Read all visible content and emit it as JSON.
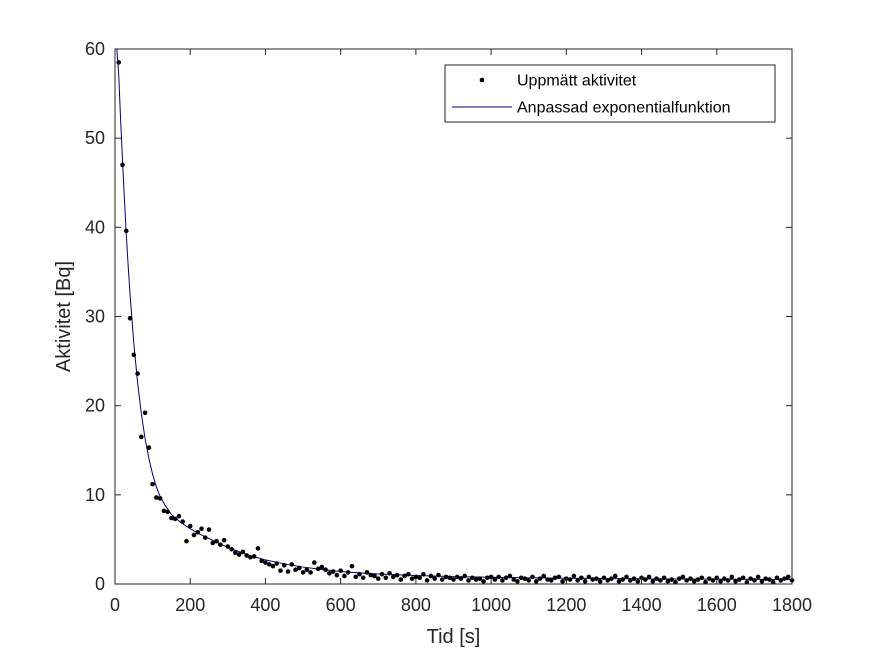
{
  "chart_data": {
    "type": "scatter",
    "title": "",
    "xlabel": "Tid [s]",
    "ylabel": "Aktivitet [Bq]",
    "xlim": [
      0,
      1800
    ],
    "ylim": [
      0,
      60
    ],
    "xticks": [
      0,
      200,
      400,
      600,
      800,
      1000,
      1200,
      1400,
      1600,
      1800
    ],
    "yticks": [
      0,
      10,
      20,
      30,
      40,
      50,
      60
    ],
    "grid": false,
    "legend_position": "top-right",
    "series": [
      {
        "name": "Uppmätt aktivitet",
        "kind": "markers",
        "color": "#000000",
        "points": [
          [
            10,
            58.5
          ],
          [
            20,
            47.0
          ],
          [
            30,
            39.6
          ],
          [
            40,
            29.8
          ],
          [
            50,
            25.7
          ],
          [
            60,
            23.6
          ],
          [
            70,
            16.5
          ],
          [
            80,
            19.2
          ],
          [
            90,
            15.3
          ],
          [
            100,
            11.2
          ],
          [
            110,
            9.7
          ],
          [
            120,
            9.6
          ],
          [
            130,
            8.2
          ],
          [
            140,
            8.1
          ],
          [
            150,
            7.4
          ],
          [
            160,
            7.3
          ],
          [
            170,
            7.6
          ],
          [
            180,
            7.0
          ],
          [
            190,
            4.8
          ],
          [
            200,
            6.5
          ],
          [
            210,
            5.5
          ],
          [
            220,
            5.8
          ],
          [
            230,
            6.2
          ],
          [
            240,
            5.2
          ],
          [
            250,
            6.1
          ],
          [
            260,
            4.6
          ],
          [
            270,
            4.8
          ],
          [
            280,
            4.4
          ],
          [
            290,
            4.9
          ],
          [
            300,
            4.2
          ],
          [
            310,
            3.9
          ],
          [
            320,
            3.5
          ],
          [
            330,
            3.3
          ],
          [
            340,
            3.6
          ],
          [
            350,
            3.2
          ],
          [
            360,
            3.0
          ],
          [
            370,
            3.1
          ],
          [
            380,
            4.0
          ],
          [
            390,
            2.6
          ],
          [
            400,
            2.4
          ],
          [
            410,
            2.2
          ],
          [
            420,
            2.0
          ],
          [
            430,
            2.3
          ],
          [
            440,
            1.5
          ],
          [
            450,
            2.1
          ],
          [
            460,
            1.4
          ],
          [
            470,
            2.2
          ],
          [
            480,
            1.6
          ],
          [
            490,
            1.8
          ],
          [
            500,
            1.3
          ],
          [
            510,
            1.6
          ],
          [
            520,
            1.3
          ],
          [
            530,
            2.4
          ],
          [
            540,
            1.7
          ],
          [
            550,
            1.9
          ],
          [
            560,
            1.6
          ],
          [
            570,
            1.2
          ],
          [
            580,
            1.4
          ],
          [
            590,
            1.0
          ],
          [
            600,
            1.5
          ],
          [
            610,
            0.9
          ],
          [
            620,
            1.3
          ],
          [
            630,
            2.0
          ],
          [
            640,
            0.8
          ],
          [
            650,
            1.1
          ],
          [
            660,
            0.7
          ],
          [
            670,
            1.3
          ],
          [
            680,
            1.0
          ],
          [
            690,
            0.9
          ],
          [
            700,
            0.6
          ],
          [
            710,
            1.1
          ],
          [
            720,
            0.7
          ],
          [
            730,
            1.2
          ],
          [
            740,
            0.8
          ],
          [
            750,
            1.0
          ],
          [
            760,
            0.5
          ],
          [
            770,
            0.9
          ],
          [
            780,
            1.1
          ],
          [
            790,
            0.6
          ],
          [
            800,
            0.8
          ],
          [
            810,
            0.7
          ],
          [
            820,
            1.1
          ],
          [
            830,
            0.4
          ],
          [
            840,
            0.9
          ],
          [
            850,
            0.6
          ],
          [
            860,
            1.0
          ],
          [
            870,
            0.5
          ],
          [
            880,
            0.8
          ],
          [
            890,
            0.7
          ],
          [
            900,
            0.5
          ],
          [
            910,
            0.8
          ],
          [
            920,
            0.6
          ],
          [
            930,
            0.9
          ],
          [
            940,
            0.4
          ],
          [
            950,
            0.7
          ],
          [
            960,
            0.5
          ],
          [
            970,
            0.6
          ],
          [
            980,
            0.3
          ],
          [
            990,
            0.7
          ],
          [
            1000,
            0.8
          ],
          [
            1010,
            0.5
          ],
          [
            1020,
            0.8
          ],
          [
            1030,
            0.4
          ],
          [
            1040,
            0.7
          ],
          [
            1050,
            0.9
          ],
          [
            1060,
            0.5
          ],
          [
            1070,
            0.3
          ],
          [
            1080,
            0.7
          ],
          [
            1090,
            0.6
          ],
          [
            1100,
            0.4
          ],
          [
            1110,
            0.8
          ],
          [
            1120,
            0.3
          ],
          [
            1130,
            0.6
          ],
          [
            1140,
            0.9
          ],
          [
            1150,
            0.5
          ],
          [
            1160,
            0.4
          ],
          [
            1170,
            0.7
          ],
          [
            1180,
            0.8
          ],
          [
            1190,
            0.3
          ],
          [
            1200,
            0.6
          ],
          [
            1210,
            0.5
          ],
          [
            1220,
            0.9
          ],
          [
            1230,
            0.4
          ],
          [
            1240,
            0.7
          ],
          [
            1250,
            0.3
          ],
          [
            1260,
            0.8
          ],
          [
            1270,
            0.5
          ],
          [
            1280,
            0.6
          ],
          [
            1290,
            0.3
          ],
          [
            1300,
            0.7
          ],
          [
            1310,
            0.4
          ],
          [
            1320,
            0.6
          ],
          [
            1330,
            0.9
          ],
          [
            1340,
            0.3
          ],
          [
            1350,
            0.5
          ],
          [
            1360,
            0.8
          ],
          [
            1370,
            0.4
          ],
          [
            1380,
            0.6
          ],
          [
            1390,
            0.3
          ],
          [
            1400,
            0.7
          ],
          [
            1410,
            0.5
          ],
          [
            1420,
            0.8
          ],
          [
            1430,
            0.3
          ],
          [
            1440,
            0.6
          ],
          [
            1450,
            0.4
          ],
          [
            1460,
            0.7
          ],
          [
            1470,
            0.3
          ],
          [
            1480,
            0.5
          ],
          [
            1490,
            0.2
          ],
          [
            1500,
            0.6
          ],
          [
            1510,
            0.8
          ],
          [
            1520,
            0.4
          ],
          [
            1530,
            0.6
          ],
          [
            1540,
            0.3
          ],
          [
            1550,
            0.5
          ],
          [
            1560,
            0.7
          ],
          [
            1570,
            0.2
          ],
          [
            1580,
            0.6
          ],
          [
            1590,
            0.4
          ],
          [
            1600,
            0.7
          ],
          [
            1610,
            0.3
          ],
          [
            1620,
            0.6
          ],
          [
            1630,
            0.4
          ],
          [
            1640,
            0.8
          ],
          [
            1650,
            0.3
          ],
          [
            1660,
            0.5
          ],
          [
            1670,
            0.7
          ],
          [
            1680,
            0.2
          ],
          [
            1690,
            0.6
          ],
          [
            1700,
            0.4
          ],
          [
            1710,
            0.8
          ],
          [
            1720,
            0.3
          ],
          [
            1730,
            0.6
          ],
          [
            1740,
            0.5
          ],
          [
            1750,
            0.2
          ],
          [
            1760,
            0.7
          ],
          [
            1770,
            0.4
          ],
          [
            1780,
            0.6
          ],
          [
            1790,
            0.8
          ],
          [
            1800,
            0.4
          ]
        ]
      },
      {
        "name": "Anpassad exponentialfunktion",
        "kind": "line",
        "color": "#00007f",
        "points": [
          [
            5,
            60.0
          ],
          [
            10,
            57.0
          ],
          [
            15,
            52.0
          ],
          [
            20,
            47.5
          ],
          [
            25,
            43.2
          ],
          [
            30,
            39.2
          ],
          [
            35,
            35.7
          ],
          [
            40,
            32.5
          ],
          [
            50,
            27.0
          ],
          [
            60,
            22.6
          ],
          [
            70,
            19.1
          ],
          [
            80,
            16.3
          ],
          [
            90,
            14.1
          ],
          [
            100,
            12.3
          ],
          [
            110,
            10.9
          ],
          [
            120,
            9.8
          ],
          [
            135,
            8.7
          ],
          [
            150,
            7.8
          ],
          [
            175,
            6.9
          ],
          [
            200,
            6.2
          ],
          [
            225,
            5.6
          ],
          [
            250,
            5.1
          ],
          [
            275,
            4.6
          ],
          [
            300,
            4.1
          ],
          [
            325,
            3.7
          ],
          [
            350,
            3.3
          ],
          [
            375,
            3.0
          ],
          [
            400,
            2.7
          ],
          [
            450,
            2.25
          ],
          [
            500,
            1.9
          ],
          [
            550,
            1.62
          ],
          [
            600,
            1.4
          ],
          [
            650,
            1.25
          ],
          [
            700,
            1.12
          ],
          [
            800,
            0.95
          ],
          [
            900,
            0.83
          ],
          [
            1000,
            0.75
          ],
          [
            1200,
            0.65
          ],
          [
            1400,
            0.58
          ],
          [
            1600,
            0.54
          ],
          [
            1800,
            0.5
          ]
        ]
      }
    ]
  }
}
